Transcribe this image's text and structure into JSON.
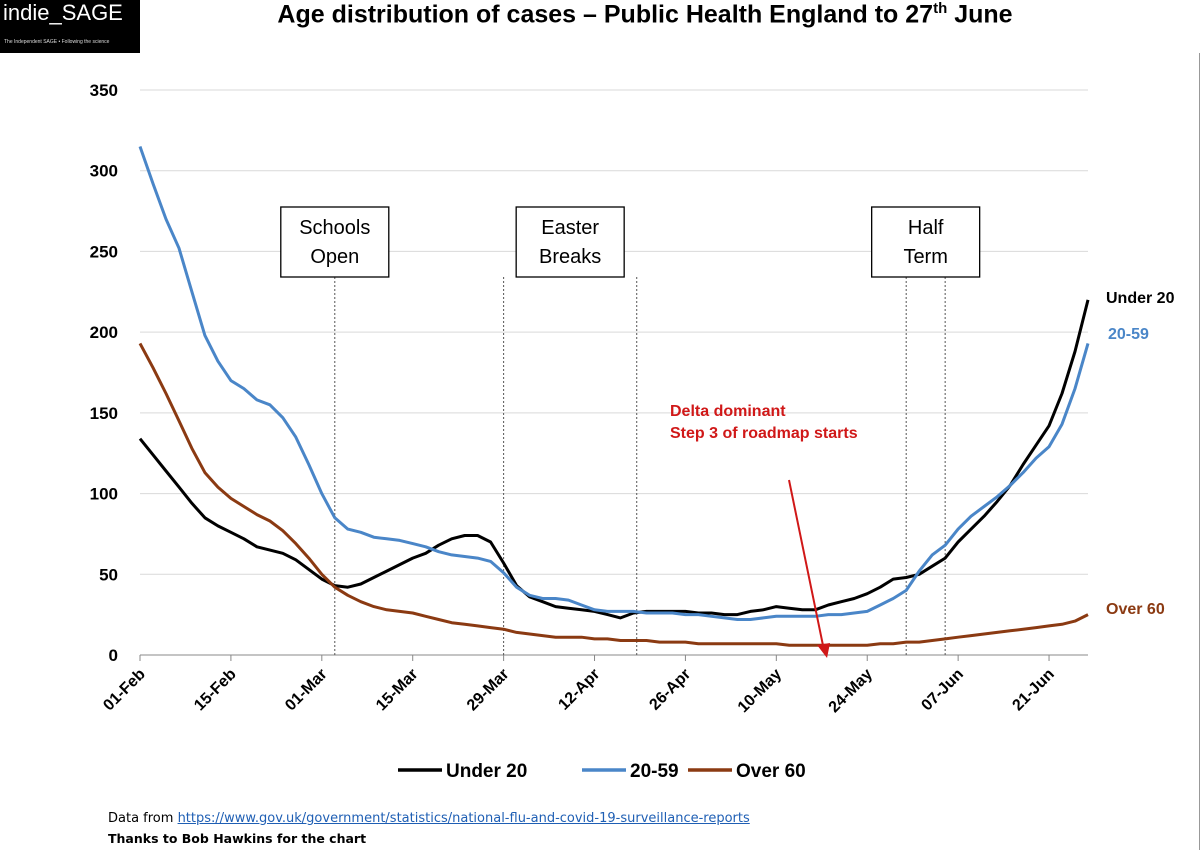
{
  "logo": {
    "brand": "indie_SAGE",
    "tagline": "The Independent SAGE • Following the science"
  },
  "page": {
    "title_main": "Age distribution of cases – Public Health England to 27",
    "title_sup": "th",
    "title_end": " June"
  },
  "footer": {
    "source_prefix": "Data from ",
    "source_link": "https://www.gov.uk/government/statistics/national-flu-and-covid-19-surveillance-reports",
    "thanks": "Thanks  to Bob Hawkins  for the chart"
  },
  "colors": {
    "under20": "#000000",
    "age20_59": "#4a86c8",
    "over60": "#8b3a12",
    "annotation": "#d01818"
  },
  "chart_data": {
    "type": "line",
    "title": "Age distribution of cases – Public Health England to 27th June",
    "xlabel": "",
    "ylabel": "",
    "ylim": [
      0,
      350
    ],
    "yticks": [
      "0",
      "50",
      "100",
      "150",
      "200",
      "250",
      "300",
      "350"
    ],
    "x_range_days": [
      0,
      146
    ],
    "xticks": [
      {
        "day": 0,
        "label": "01-Feb"
      },
      {
        "day": 14,
        "label": "15-Feb"
      },
      {
        "day": 28,
        "label": "01-Mar"
      },
      {
        "day": 42,
        "label": "15-Mar"
      },
      {
        "day": 56,
        "label": "29-Mar"
      },
      {
        "day": 70,
        "label": "12-Apr"
      },
      {
        "day": 84,
        "label": "26-Apr"
      },
      {
        "day": 98,
        "label": "10-May"
      },
      {
        "day": 112,
        "label": "24-May"
      },
      {
        "day": 126,
        "label": "07-Jun"
      },
      {
        "day": 140,
        "label": "21-Jun"
      }
    ],
    "grid": true,
    "legend": "bottom",
    "series": [
      {
        "name": "Under 20",
        "end_label": "Under 20",
        "color": "#000000",
        "points": [
          [
            0,
            134
          ],
          [
            2,
            124
          ],
          [
            4,
            114
          ],
          [
            6,
            104
          ],
          [
            8,
            94
          ],
          [
            10,
            85
          ],
          [
            12,
            80
          ],
          [
            14,
            76
          ],
          [
            16,
            72
          ],
          [
            18,
            67
          ],
          [
            20,
            65
          ],
          [
            22,
            63
          ],
          [
            24,
            59
          ],
          [
            26,
            53
          ],
          [
            28,
            47
          ],
          [
            30,
            43
          ],
          [
            32,
            42
          ],
          [
            34,
            44
          ],
          [
            36,
            48
          ],
          [
            38,
            52
          ],
          [
            40,
            56
          ],
          [
            42,
            60
          ],
          [
            44,
            63
          ],
          [
            46,
            68
          ],
          [
            48,
            72
          ],
          [
            50,
            74
          ],
          [
            52,
            74
          ],
          [
            54,
            70
          ],
          [
            56,
            57
          ],
          [
            58,
            43
          ],
          [
            60,
            36
          ],
          [
            62,
            33
          ],
          [
            64,
            30
          ],
          [
            66,
            29
          ],
          [
            68,
            28
          ],
          [
            70,
            27
          ],
          [
            72,
            25
          ],
          [
            74,
            23
          ],
          [
            76,
            26
          ],
          [
            78,
            27
          ],
          [
            80,
            27
          ],
          [
            82,
            27
          ],
          [
            84,
            27
          ],
          [
            86,
            26
          ],
          [
            88,
            26
          ],
          [
            90,
            25
          ],
          [
            92,
            25
          ],
          [
            94,
            27
          ],
          [
            96,
            28
          ],
          [
            98,
            30
          ],
          [
            100,
            29
          ],
          [
            102,
            28
          ],
          [
            104,
            28
          ],
          [
            106,
            31
          ],
          [
            108,
            33
          ],
          [
            110,
            35
          ],
          [
            112,
            38
          ],
          [
            114,
            42
          ],
          [
            116,
            47
          ],
          [
            118,
            48
          ],
          [
            120,
            50
          ],
          [
            122,
            55
          ],
          [
            124,
            60
          ],
          [
            126,
            70
          ],
          [
            128,
            78
          ],
          [
            130,
            86
          ],
          [
            132,
            95
          ],
          [
            134,
            105
          ],
          [
            136,
            118
          ],
          [
            138,
            130
          ],
          [
            140,
            142
          ],
          [
            142,
            162
          ],
          [
            144,
            188
          ],
          [
            146,
            220
          ]
        ]
      },
      {
        "name": "20-59",
        "end_label": "20-59",
        "color": "#4a86c8",
        "points": [
          [
            0,
            315
          ],
          [
            2,
            292
          ],
          [
            4,
            270
          ],
          [
            6,
            252
          ],
          [
            8,
            225
          ],
          [
            10,
            198
          ],
          [
            12,
            182
          ],
          [
            14,
            170
          ],
          [
            16,
            165
          ],
          [
            18,
            158
          ],
          [
            20,
            155
          ],
          [
            22,
            147
          ],
          [
            24,
            135
          ],
          [
            26,
            118
          ],
          [
            28,
            100
          ],
          [
            30,
            85
          ],
          [
            32,
            78
          ],
          [
            34,
            76
          ],
          [
            36,
            73
          ],
          [
            38,
            72
          ],
          [
            40,
            71
          ],
          [
            42,
            69
          ],
          [
            44,
            67
          ],
          [
            46,
            64
          ],
          [
            48,
            62
          ],
          [
            50,
            61
          ],
          [
            52,
            60
          ],
          [
            54,
            58
          ],
          [
            56,
            51
          ],
          [
            58,
            42
          ],
          [
            60,
            37
          ],
          [
            62,
            35
          ],
          [
            64,
            35
          ],
          [
            66,
            34
          ],
          [
            68,
            31
          ],
          [
            70,
            28
          ],
          [
            72,
            27
          ],
          [
            74,
            27
          ],
          [
            76,
            27
          ],
          [
            78,
            26
          ],
          [
            80,
            26
          ],
          [
            82,
            26
          ],
          [
            84,
            25
          ],
          [
            86,
            25
          ],
          [
            88,
            24
          ],
          [
            90,
            23
          ],
          [
            92,
            22
          ],
          [
            94,
            22
          ],
          [
            96,
            23
          ],
          [
            98,
            24
          ],
          [
            100,
            24
          ],
          [
            102,
            24
          ],
          [
            104,
            24
          ],
          [
            106,
            25
          ],
          [
            108,
            25
          ],
          [
            110,
            26
          ],
          [
            112,
            27
          ],
          [
            114,
            31
          ],
          [
            116,
            35
          ],
          [
            118,
            40
          ],
          [
            120,
            52
          ],
          [
            122,
            62
          ],
          [
            124,
            68
          ],
          [
            126,
            78
          ],
          [
            128,
            86
          ],
          [
            130,
            92
          ],
          [
            132,
            98
          ],
          [
            134,
            105
          ],
          [
            136,
            113
          ],
          [
            138,
            122
          ],
          [
            140,
            129
          ],
          [
            142,
            143
          ],
          [
            144,
            165
          ],
          [
            146,
            193
          ]
        ]
      },
      {
        "name": "Over 60",
        "end_label": "Over 60",
        "color": "#8b3a12",
        "points": [
          [
            0,
            193
          ],
          [
            2,
            178
          ],
          [
            4,
            162
          ],
          [
            6,
            145
          ],
          [
            8,
            128
          ],
          [
            10,
            113
          ],
          [
            12,
            104
          ],
          [
            14,
            97
          ],
          [
            16,
            92
          ],
          [
            18,
            87
          ],
          [
            20,
            83
          ],
          [
            22,
            77
          ],
          [
            24,
            69
          ],
          [
            26,
            60
          ],
          [
            28,
            50
          ],
          [
            30,
            42
          ],
          [
            32,
            37
          ],
          [
            34,
            33
          ],
          [
            36,
            30
          ],
          [
            38,
            28
          ],
          [
            40,
            27
          ],
          [
            42,
            26
          ],
          [
            44,
            24
          ],
          [
            46,
            22
          ],
          [
            48,
            20
          ],
          [
            50,
            19
          ],
          [
            52,
            18
          ],
          [
            54,
            17
          ],
          [
            56,
            16
          ],
          [
            58,
            14
          ],
          [
            60,
            13
          ],
          [
            62,
            12
          ],
          [
            64,
            11
          ],
          [
            66,
            11
          ],
          [
            68,
            11
          ],
          [
            70,
            10
          ],
          [
            72,
            10
          ],
          [
            74,
            9
          ],
          [
            76,
            9
          ],
          [
            78,
            9
          ],
          [
            80,
            8
          ],
          [
            82,
            8
          ],
          [
            84,
            8
          ],
          [
            86,
            7
          ],
          [
            88,
            7
          ],
          [
            90,
            7
          ],
          [
            92,
            7
          ],
          [
            94,
            7
          ],
          [
            96,
            7
          ],
          [
            98,
            7
          ],
          [
            100,
            6
          ],
          [
            102,
            6
          ],
          [
            104,
            6
          ],
          [
            106,
            6
          ],
          [
            108,
            6
          ],
          [
            110,
            6
          ],
          [
            112,
            6
          ],
          [
            114,
            7
          ],
          [
            116,
            7
          ],
          [
            118,
            8
          ],
          [
            120,
            8
          ],
          [
            122,
            9
          ],
          [
            124,
            10
          ],
          [
            126,
            11
          ],
          [
            128,
            12
          ],
          [
            130,
            13
          ],
          [
            132,
            14
          ],
          [
            134,
            15
          ],
          [
            136,
            16
          ],
          [
            138,
            17
          ],
          [
            140,
            18
          ],
          [
            142,
            19
          ],
          [
            144,
            21
          ],
          [
            146,
            25
          ]
        ]
      }
    ],
    "event_boxes": [
      {
        "lines": [
          "Schools",
          "Open"
        ],
        "days": [
          30
        ]
      },
      {
        "lines": [
          "Easter",
          "Breaks"
        ],
        "days": [
          56,
          76.5
        ]
      },
      {
        "lines": [
          "Half",
          "Term"
        ],
        "days": [
          118,
          124
        ]
      }
    ],
    "annotation": {
      "lines": [
        "Delta dominant",
        "Step 3 of roadmap starts"
      ],
      "arrow_to_day": 105.5
    }
  }
}
